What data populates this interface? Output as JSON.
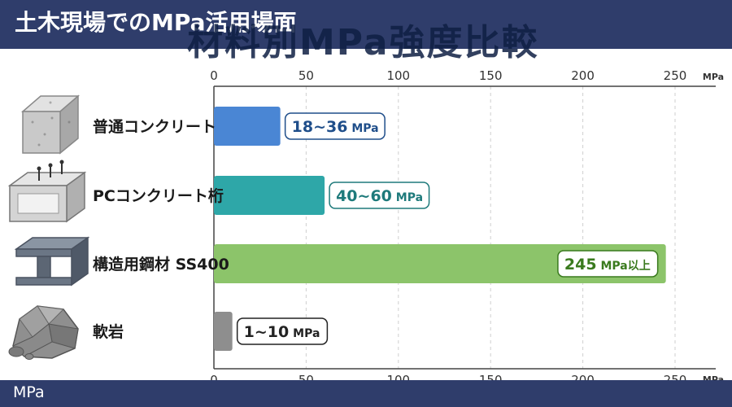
{
  "header": {
    "title": "土木現場でのMPa活用場面",
    "ghost_title": "材料別MPa強度比較"
  },
  "footer": {
    "label": "MPa"
  },
  "chart_data": {
    "type": "bar",
    "orientation": "horizontal",
    "categories": [
      "普通コンクリート",
      "PCコンクリート桁",
      "構造用鋼材 SS400",
      "軟岩"
    ],
    "values": [
      36,
      60,
      245,
      10
    ],
    "ranges": [
      [
        18,
        36
      ],
      [
        40,
        60
      ],
      [
        245,
        null
      ],
      [
        1,
        10
      ]
    ],
    "data_labels": [
      {
        "num": "18~36",
        "unit": " MPa"
      },
      {
        "num": "40~60",
        "unit": " MPa"
      },
      {
        "num": "245",
        "unit": " MPa以上"
      },
      {
        "num": "1~10",
        "unit": " MPa"
      }
    ],
    "colors": [
      "#4a86d4",
      "#2ea7a8",
      "#8cc46a",
      "#8e8e8e"
    ],
    "label_text_colors": [
      "#1f4e8a",
      "#1e7a7b",
      "#3a7a1e",
      "#222222"
    ],
    "icons": [
      "concrete-block-icon",
      "pc-girder-icon",
      "steel-beam-icon",
      "rock-icon"
    ],
    "xlim": [
      0,
      270
    ],
    "xticks": [
      "0",
      "50",
      "100",
      "150",
      "200",
      "250"
    ],
    "xtick_values": [
      0,
      50,
      100,
      150,
      200,
      250
    ],
    "unit_label": "MPa",
    "grid": true
  }
}
